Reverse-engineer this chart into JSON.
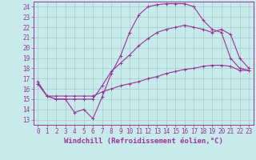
{
  "xlabel": "Windchill (Refroidissement éolien,°C)",
  "bg_color": "#c8eaea",
  "grid_color": "#a0cccc",
  "line_color": "#993399",
  "xlim": [
    -0.5,
    23.5
  ],
  "ylim": [
    12.5,
    24.5
  ],
  "xticks": [
    0,
    1,
    2,
    3,
    4,
    5,
    6,
    7,
    8,
    9,
    10,
    11,
    12,
    13,
    14,
    15,
    16,
    17,
    18,
    19,
    20,
    21,
    22,
    23
  ],
  "yticks": [
    13,
    14,
    15,
    16,
    17,
    18,
    19,
    20,
    21,
    22,
    23,
    24
  ],
  "line1_y": [
    16.7,
    15.3,
    15.0,
    15.0,
    13.7,
    14.0,
    13.1,
    15.2,
    17.5,
    19.2,
    21.5,
    23.2,
    24.0,
    24.2,
    24.3,
    24.3,
    24.3,
    24.0,
    22.7,
    21.8,
    21.5,
    19.0,
    18.0,
    17.8
  ],
  "line2_y": [
    16.5,
    15.3,
    15.0,
    15.0,
    15.0,
    15.0,
    15.0,
    16.3,
    17.7,
    18.5,
    19.3,
    20.2,
    20.9,
    21.5,
    21.8,
    22.0,
    22.2,
    22.0,
    21.8,
    21.5,
    21.8,
    21.3,
    19.0,
    18.0
  ],
  "line3_y": [
    16.5,
    15.3,
    15.3,
    15.3,
    15.3,
    15.3,
    15.3,
    15.7,
    16.0,
    16.3,
    16.5,
    16.7,
    17.0,
    17.2,
    17.5,
    17.7,
    17.9,
    18.0,
    18.2,
    18.3,
    18.3,
    18.2,
    17.8,
    17.8
  ],
  "marker_size": 3,
  "line_width": 0.8,
  "font_color": "#993399",
  "tick_fontsize": 5.5,
  "xlabel_fontsize": 6.5
}
